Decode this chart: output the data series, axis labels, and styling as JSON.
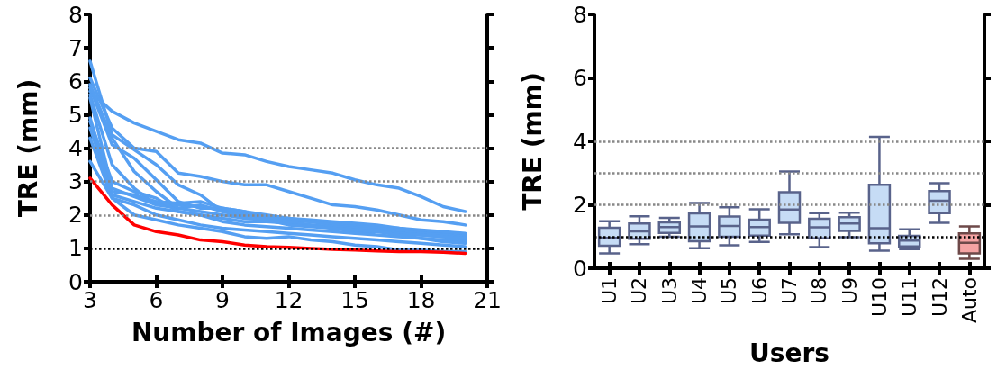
{
  "chart_data": [
    {
      "type": "line",
      "xlabel": "Number of Images (#)",
      "ylabel": "TRE (mm)",
      "xlim": [
        3,
        21
      ],
      "xticks": [
        3,
        6,
        9,
        12,
        15,
        18,
        21
      ],
      "ylim": [
        0,
        8
      ],
      "yticks": [
        0,
        1,
        2,
        3,
        4,
        5,
        6,
        7,
        8
      ],
      "grid": false,
      "x": [
        3,
        4,
        5,
        6,
        7,
        8,
        9,
        10,
        11,
        12,
        13,
        14,
        15,
        16,
        17,
        18,
        19,
        20
      ],
      "ref_lines": [
        {
          "axis": "y",
          "value": 1,
          "color": "#000000",
          "line_style": "dotted"
        },
        {
          "axis": "y",
          "value": 2,
          "color": "#888888",
          "line_style": "dotted"
        },
        {
          "axis": "y",
          "value": 3,
          "color": "#888888",
          "line_style": "dotted"
        },
        {
          "axis": "y",
          "value": 4,
          "color": "#888888",
          "line_style": "dotted"
        }
      ],
      "series": [
        {
          "color": "#559ff2",
          "values": [
            5.7,
            5.1,
            4.75,
            4.5,
            4.25,
            4.15,
            3.85,
            3.8,
            3.6,
            3.45,
            3.35,
            3.25,
            3.05,
            2.9,
            2.8,
            2.55,
            2.25,
            2.1
          ]
        },
        {
          "color": "#559ff2",
          "values": [
            6.1,
            4.6,
            4.0,
            3.9,
            3.25,
            3.15,
            3.0,
            2.9,
            2.9,
            2.7,
            2.5,
            2.3,
            2.25,
            2.15,
            2.0,
            1.85,
            1.8,
            1.7
          ]
        },
        {
          "color": "#559ff2",
          "values": [
            6.6,
            4.4,
            3.95,
            3.5,
            2.9,
            2.6,
            2.1,
            2.05,
            1.95,
            1.85,
            1.8,
            1.75,
            1.7,
            1.65,
            1.6,
            1.5,
            1.45,
            1.4
          ]
        },
        {
          "color": "#559ff2",
          "values": [
            5.8,
            4.1,
            3.7,
            3.05,
            2.4,
            2.2,
            2.2,
            2.1,
            2.0,
            1.9,
            1.85,
            1.8,
            1.75,
            1.7,
            1.6,
            1.55,
            1.5,
            1.45
          ]
        },
        {
          "color": "#559ff2",
          "values": [
            5.6,
            3.5,
            2.8,
            2.3,
            2.3,
            2.25,
            2.15,
            2.0,
            1.95,
            1.9,
            1.8,
            1.75,
            1.7,
            1.6,
            1.55,
            1.45,
            1.4,
            1.35
          ]
        },
        {
          "color": "#559ff2",
          "values": [
            4.9,
            2.7,
            2.6,
            2.4,
            2.35,
            2.4,
            2.2,
            2.1,
            1.9,
            1.85,
            1.8,
            1.7,
            1.65,
            1.6,
            1.5,
            1.45,
            1.4,
            1.3
          ]
        },
        {
          "color": "#559ff2",
          "values": [
            4.6,
            2.6,
            2.4,
            2.2,
            2.1,
            2.0,
            1.9,
            1.8,
            1.8,
            1.75,
            1.7,
            1.65,
            1.6,
            1.55,
            1.45,
            1.4,
            1.35,
            1.25
          ]
        },
        {
          "color": "#559ff2",
          "values": [
            4.3,
            2.5,
            2.3,
            2.0,
            1.85,
            1.7,
            1.6,
            1.55,
            1.5,
            1.45,
            1.4,
            1.35,
            1.3,
            1.25,
            1.2,
            1.15,
            1.1,
            1.05
          ]
        },
        {
          "color": "#559ff2",
          "values": [
            3.6,
            2.5,
            2.0,
            1.85,
            1.7,
            1.6,
            1.5,
            1.35,
            1.3,
            1.35,
            1.25,
            1.2,
            1.1,
            1.05,
            0.95,
            0.95,
            0.9,
            0.9
          ]
        },
        {
          "color": "#559ff2",
          "values": [
            5.5,
            2.8,
            2.55,
            2.3,
            2.2,
            2.3,
            2.1,
            1.95,
            1.9,
            1.8,
            1.7,
            1.6,
            1.5,
            1.5,
            1.45,
            1.4,
            1.35,
            1.3
          ]
        },
        {
          "color": "#559ff2",
          "values": [
            4.8,
            3.0,
            2.7,
            2.5,
            2.1,
            2.0,
            1.8,
            1.7,
            1.65,
            1.6,
            1.55,
            1.5,
            1.45,
            1.4,
            1.35,
            1.3,
            1.25,
            1.2
          ]
        },
        {
          "color": "#559ff2",
          "values": [
            5.9,
            4.3,
            3.3,
            2.7,
            2.2,
            2.1,
            2.0,
            1.9,
            1.85,
            1.7,
            1.65,
            1.6,
            1.55,
            1.5,
            1.4,
            1.3,
            1.2,
            1.15
          ]
        },
        {
          "color": "#ff0000",
          "values": [
            3.1,
            2.3,
            1.7,
            1.5,
            1.4,
            1.25,
            1.2,
            1.1,
            1.05,
            1.03,
            1.0,
            0.97,
            0.95,
            0.92,
            0.9,
            0.9,
            0.88,
            0.85
          ]
        }
      ]
    },
    {
      "type": "box",
      "xlabel": "Users",
      "ylabel": "TRE (mm)",
      "ylim": [
        0,
        8
      ],
      "yticks": [
        0,
        2,
        4,
        6,
        8
      ],
      "grid": false,
      "categories": [
        "U1",
        "U2",
        "U3",
        "U4",
        "U5",
        "U6",
        "U7",
        "U8",
        "U9",
        "U10",
        "U11",
        "U12",
        "Auto"
      ],
      "colors": [
        "#c6dcf5",
        "#c6dcf5",
        "#c6dcf5",
        "#c6dcf5",
        "#c6dcf5",
        "#c6dcf5",
        "#c6dcf5",
        "#c6dcf5",
        "#c6dcf5",
        "#c6dcf5",
        "#c6dcf5",
        "#c6dcf5",
        "#f5a3a3"
      ],
      "ref_lines": [
        {
          "axis": "y",
          "value": 1,
          "color": "#000000",
          "line_style": "dotted"
        },
        {
          "axis": "y",
          "value": 2,
          "color": "#888888",
          "line_style": "dotted"
        },
        {
          "axis": "y",
          "value": 3,
          "color": "#888888",
          "line_style": "dotted"
        },
        {
          "axis": "y",
          "value": 4,
          "color": "#888888",
          "line_style": "dotted"
        }
      ],
      "boxes": [
        {
          "low": 0.47,
          "q1": 0.71,
          "median": 0.96,
          "q3": 1.28,
          "high": 1.48
        },
        {
          "low": 0.76,
          "q1": 0.93,
          "median": 1.16,
          "q3": 1.41,
          "high": 1.64
        },
        {
          "low": 0.99,
          "q1": 1.11,
          "median": 1.3,
          "q3": 1.45,
          "high": 1.59
        },
        {
          "low": 0.63,
          "q1": 0.85,
          "median": 1.32,
          "q3": 1.73,
          "high": 2.06
        },
        {
          "low": 0.72,
          "q1": 0.99,
          "median": 1.33,
          "q3": 1.63,
          "high": 1.92
        },
        {
          "low": 0.83,
          "q1": 1.03,
          "median": 1.3,
          "q3": 1.53,
          "high": 1.86
        },
        {
          "low": 1.07,
          "q1": 1.43,
          "median": 1.85,
          "q3": 2.4,
          "high": 3.05
        },
        {
          "low": 0.67,
          "q1": 0.94,
          "median": 1.29,
          "q3": 1.56,
          "high": 1.74
        },
        {
          "low": 0.98,
          "q1": 1.18,
          "median": 1.41,
          "q3": 1.61,
          "high": 1.75
        },
        {
          "low": 0.55,
          "q1": 0.79,
          "median": 1.26,
          "q3": 2.63,
          "high": 4.14
        },
        {
          "low": 0.6,
          "q1": 0.69,
          "median": 0.87,
          "q3": 1.02,
          "high": 1.23
        },
        {
          "low": 1.43,
          "q1": 1.74,
          "median": 2.13,
          "q3": 2.43,
          "high": 2.68
        },
        {
          "low": 0.3,
          "q1": 0.47,
          "median": 0.8,
          "q3": 1.1,
          "high": 1.32
        }
      ]
    }
  ]
}
